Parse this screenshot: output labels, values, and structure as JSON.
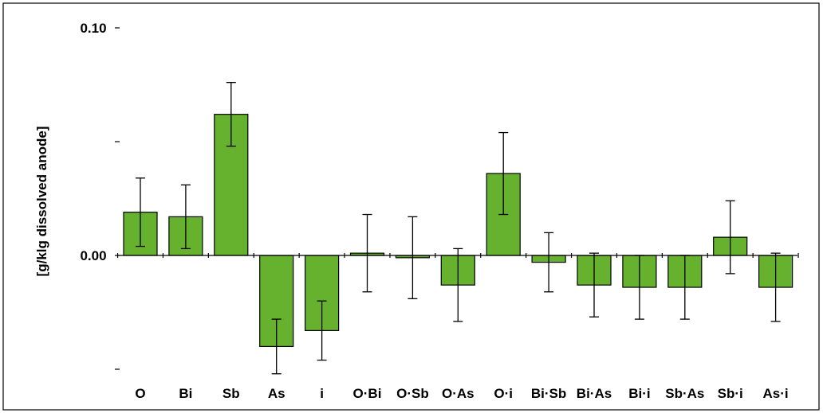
{
  "chart_data": {
    "type": "bar",
    "title": "",
    "xlabel": "",
    "ylabel": "[g/klg dissolved anode]",
    "ylim": [
      -0.05,
      0.11
    ],
    "yticks": [
      {
        "value": 0.1,
        "label": "0.10"
      },
      {
        "value": 0.05,
        "label": ""
      },
      {
        "value": 0.0,
        "label": "0.00"
      },
      {
        "value": -0.05,
        "label": ""
      }
    ],
    "categories": [
      "O",
      "Bi",
      "Sb",
      "As",
      "i",
      "O·Bi",
      "O·Sb",
      "O·As",
      "O·i",
      "Bi·Sb",
      "Bi·As",
      "Bi·i",
      "Sb·As",
      "Sb·i",
      "As·i"
    ],
    "values": [
      0.019,
      0.017,
      0.062,
      -0.04,
      -0.033,
      0.001,
      -0.001,
      -0.013,
      0.036,
      -0.003,
      -0.013,
      -0.014,
      -0.014,
      0.008,
      -0.014
    ],
    "error": [
      0.015,
      0.014,
      0.014,
      0.012,
      0.013,
      0.017,
      0.018,
      0.016,
      0.018,
      0.013,
      0.014,
      0.014,
      0.014,
      0.016,
      0.015
    ],
    "bar_color": "#66b22e",
    "bar_edge_color": "#000000",
    "grid": false,
    "legend": "none"
  }
}
